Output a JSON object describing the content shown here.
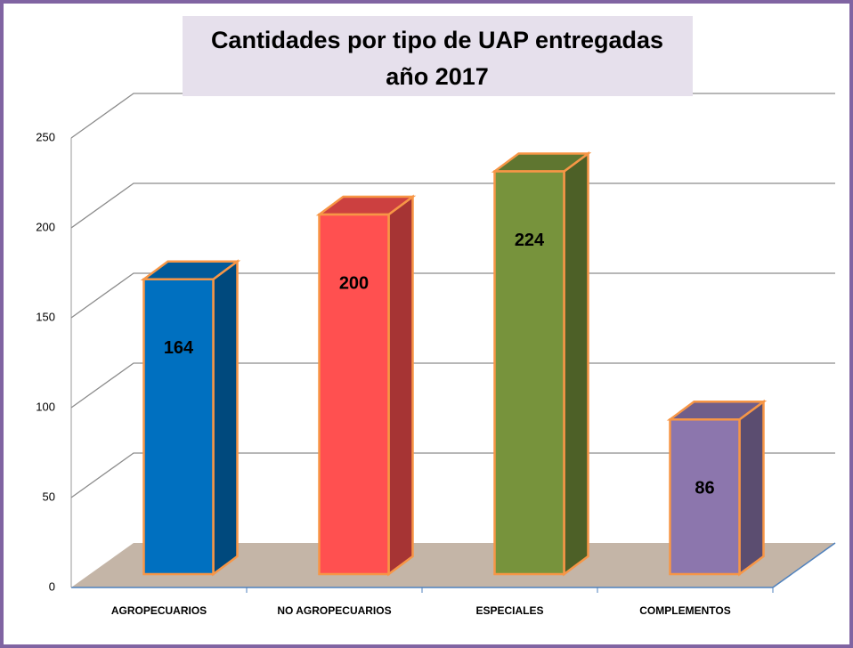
{
  "chart_data": {
    "type": "bar3d",
    "title": [
      "Cantidades por tipo de UAP entregadas",
      "año 2017"
    ],
    "categories": [
      "AGROPECUARIOS",
      "NO AGROPECUARIOS",
      "ESPECIALES",
      "COMPLEMENTOS"
    ],
    "values": [
      164,
      200,
      224,
      86
    ],
    "colors": [
      "#0070c0",
      "#ff5050",
      "#77933c",
      "#8c76ad"
    ],
    "ylim": [
      0,
      250
    ],
    "yticks": [
      0,
      50,
      100,
      150,
      200,
      250
    ],
    "grid": true
  }
}
